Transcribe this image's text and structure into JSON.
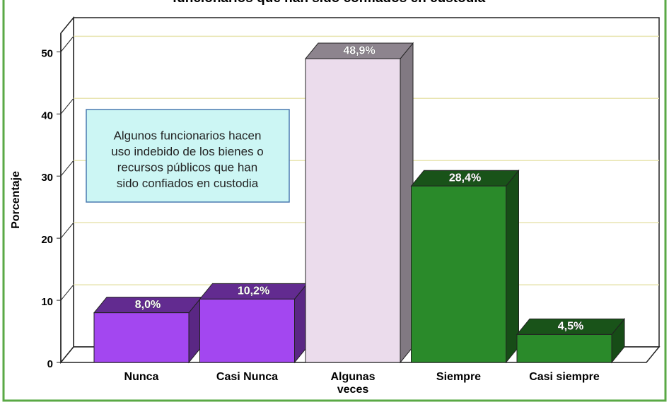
{
  "chart_data": {
    "type": "bar3d",
    "title": "funcionarios que han sido confiados en custodia",
    "y_label": "Porcentaje",
    "categories": [
      "Nunca",
      "Casi Nunca",
      "Algunas veces",
      "Siempre",
      "Casi siempre"
    ],
    "values": [
      8.0,
      10.2,
      48.9,
      28.4,
      4.5
    ],
    "value_labels": [
      "8,0%",
      "10,2%",
      "48,9%",
      "28,4%",
      "4,5%"
    ],
    "colors": [
      "#a347f0",
      "#a347f0",
      "#ebdcec",
      "#2a8a2a",
      "#2a8a2a"
    ],
    "ylim": [
      0,
      53
    ],
    "yticks": [
      0,
      10,
      20,
      30,
      40,
      50
    ],
    "grid": true,
    "annotation": [
      "Algunos funcionarios hacen",
      "uso indebido de los bienes o",
      "recursos públicos que han",
      "sido confiados en custodia"
    ]
  }
}
